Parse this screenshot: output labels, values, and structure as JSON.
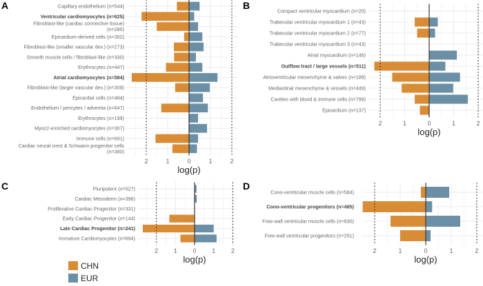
{
  "colors": {
    "CHN": "#D98C36",
    "EUR": "#6B8FA5",
    "zero_line": "#333333",
    "threshold_line": "#222222",
    "grid": "#EBEBEB"
  },
  "legend": {
    "items": [
      {
        "name": "CHN",
        "color": "#D98C36"
      },
      {
        "name": "EUR",
        "color": "#6B8FA5"
      }
    ]
  },
  "chart_data": [
    {
      "panel": "A",
      "type": "bar",
      "orientation": "horizontal-diverging",
      "xlabel": "log(p)",
      "tick_labels": [
        "2",
        "1",
        "0",
        "1",
        "2"
      ],
      "xlim": [
        -2.8,
        2.8
      ],
      "threshold": 2,
      "grid": true,
      "categories": [
        "Capillary endothelium (n=544)",
        "Ventricular cardiomyocytes (n=625)",
        "Fibroblast-like (cardiac connective tissue)\n(n=280)",
        "Epicardium-derived cells (n=352)",
        "Fibroblast-like (smaller vascular dev.) (n=273)",
        "Smooth muscle cells / fibroblast-like (n=330)",
        "Erythrocytes (n=447)",
        "Atrial cardiomyocytes (n=584)",
        "Fibroblast-like (larger vascular dev.) (n=309)",
        "Epicardial cells (n=484)",
        "Endothelium / pericytes / adventia (n=647)",
        "Erythrocytes (n=199)",
        "Myoz2-enriched cardiomyocytes (n=307)",
        "Immune cells (n=691)",
        "Cardiac neural crest & Schwann progenitor cells\n(n=380)"
      ],
      "bold": [
        false,
        true,
        false,
        false,
        false,
        false,
        false,
        true,
        false,
        false,
        false,
        false,
        false,
        false,
        false
      ],
      "series": [
        {
          "name": "CHN",
          "values": [
            0.57,
            2.22,
            1.51,
            0.23,
            0.71,
            0.7,
            1.08,
            2.68,
            0.65,
            0,
            1.3,
            0,
            0,
            1.57,
            0.78
          ]
        },
        {
          "name": "EUR",
          "values": [
            0.49,
            0.24,
            0.42,
            0.62,
            0.68,
            0.32,
            0.62,
            1.33,
            0.97,
            0.65,
            0.88,
            0.42,
            0.84,
            0.42,
            0.37
          ]
        }
      ]
    },
    {
      "panel": "B",
      "type": "bar",
      "orientation": "horizontal-diverging",
      "xlabel": "log(p)",
      "tick_labels": [
        "2",
        "1",
        "0",
        "1",
        "2"
      ],
      "xlim": [
        -2.3,
        2.3
      ],
      "threshold": 2,
      "grid": true,
      "categories": [
        "Compact ventricular myocardium (n=20)",
        "Trabecular ventricular myocardium 1 (n=43)",
        "Trabecular ventricular myocardium 2 (n=77)",
        "Trabecular ventricular myocardium 3 (n=43)",
        "Atrial myocardium (n=146)",
        "Outflow tract / large vessels (n=511)",
        "Atrioventricular mesenchyme & valves (n=189)",
        "Mediastinal mesenchyme & vessels (n=449)",
        "Cavities with blood & immune cells (n=799)",
        "Epicardium (n=137)"
      ],
      "bold": [
        false,
        false,
        false,
        false,
        false,
        true,
        false,
        false,
        false,
        false
      ],
      "series": [
        {
          "name": "CHN",
          "values": [
            0,
            0.59,
            0.49,
            0,
            0,
            2.24,
            1.51,
            1.12,
            0.59,
            0.38
          ]
        },
        {
          "name": "EUR",
          "values": [
            0,
            0.35,
            0.24,
            0,
            1.13,
            0.66,
            1.26,
            0.98,
            1.58,
            0
          ]
        }
      ]
    },
    {
      "panel": "C",
      "type": "bar",
      "orientation": "horizontal-diverging",
      "xlabel": "log(p)",
      "tick_labels": [
        "2",
        "1",
        "0",
        "1",
        "2"
      ],
      "xlim": [
        -2.9,
        2.3
      ],
      "threshold": 2,
      "grid": true,
      "categories": [
        "Pluripotent (n=527)",
        "Cardiac Mesoderm (n=396)",
        "Proliferative Cardiac Progenitor (n=331)",
        "Early Cardiac Progenitor (n=144)",
        "Late Cardiac Progenitor (n=241)",
        "Immature Cardiomyocytes (n=694)"
      ],
      "bold": [
        false,
        false,
        false,
        false,
        true,
        false
      ],
      "series": [
        {
          "name": "CHN",
          "values": [
            0,
            0,
            0,
            1.32,
            2.71,
            0.74
          ]
        },
        {
          "name": "EUR",
          "values": [
            0.1,
            0.11,
            0,
            0,
            1.0,
            1.15
          ]
        }
      ]
    },
    {
      "panel": "D",
      "type": "bar",
      "orientation": "horizontal-diverging",
      "xlabel": "log(p)",
      "tick_labels": [
        "2",
        "1",
        "0",
        "1",
        "2"
      ],
      "xlim": [
        -2.5,
        2.2
      ],
      "threshold": 2,
      "grid": true,
      "categories": [
        "Cono-ventricular muscle cells (n=584)",
        "Cono-ventricular progenitors (n=485)",
        "Free-wall ventricular muscle cells (n=830)",
        "Free-wall ventricular progenitors (n=251)"
      ],
      "bold": [
        false,
        true,
        false,
        false
      ],
      "series": [
        {
          "name": "CHN",
          "values": [
            0.19,
            2.47,
            1.38,
            1.0
          ]
        },
        {
          "name": "EUR",
          "values": [
            0.92,
            0.25,
            1.35,
            0.19
          ]
        }
      ]
    }
  ]
}
